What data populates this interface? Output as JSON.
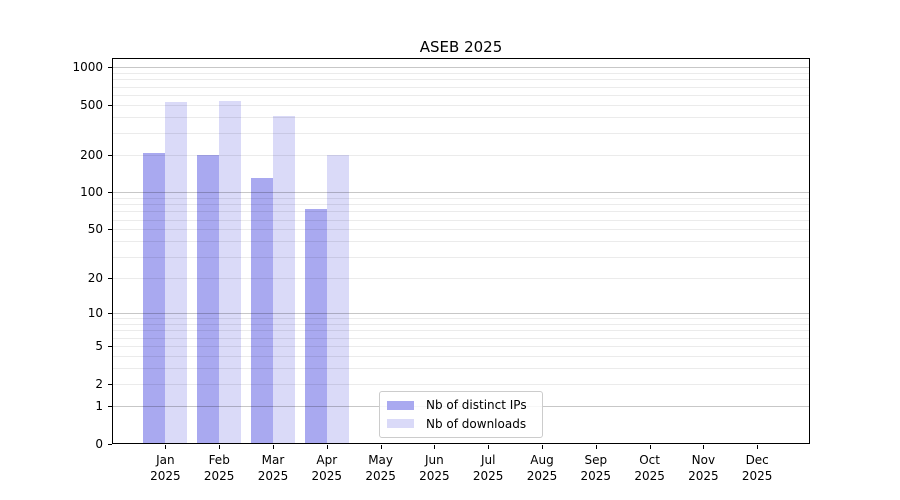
{
  "chart_data": {
    "type": "bar",
    "title": "ASEB 2025",
    "categories": [
      "Jan 2025",
      "Feb 2025",
      "Mar 2025",
      "Apr 2025",
      "May 2025",
      "Jun 2025",
      "Jul 2025",
      "Aug 2025",
      "Sep 2025",
      "Oct 2025",
      "Nov 2025",
      "Dec 2025"
    ],
    "series": [
      {
        "name": "Nb of distinct IPs",
        "color": "#a9a9f0",
        "values": [
          205,
          200,
          130,
          73,
          0,
          0,
          0,
          0,
          0,
          0,
          0,
          0
        ]
      },
      {
        "name": "Nb of downloads",
        "color": "#dadaf8",
        "values": [
          530,
          540,
          410,
          200,
          0,
          0,
          0,
          0,
          0,
          0,
          0,
          0
        ]
      }
    ],
    "xlabel": "",
    "ylabel": "",
    "yscale": "log10(value+1)",
    "yticks": [
      0,
      1,
      2,
      5,
      10,
      20,
      50,
      100,
      200,
      500,
      1000
    ],
    "ylim": [
      0,
      1175
    ],
    "grid": "horizontal major and minor gridlines, drawn over bars",
    "legend_position": "lower center",
    "bar_layout": "paired bars adjacent, centered on month tick"
  },
  "colors": {
    "background": "#ffffff",
    "spine": "#000000",
    "major_grid": "rgba(0,0,0,0.22)",
    "minor_grid": "rgba(0,0,0,0.08)",
    "legend_border": "#cccccc"
  }
}
